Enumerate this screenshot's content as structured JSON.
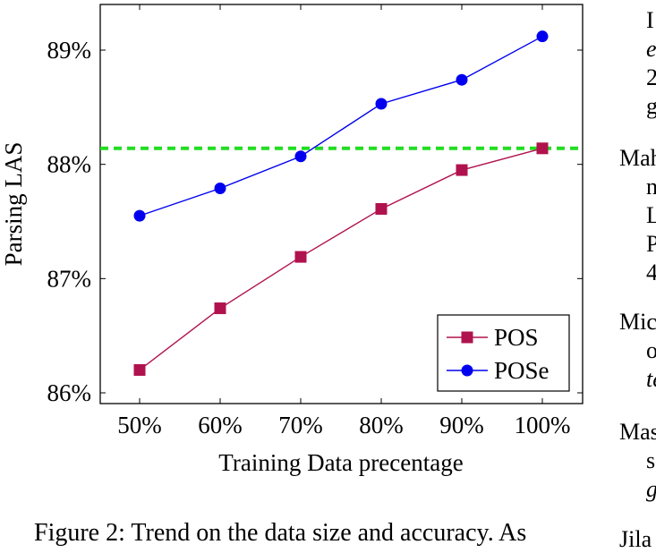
{
  "chart_data": {
    "type": "line",
    "categories": [
      "50%",
      "60%",
      "70%",
      "80%",
      "90%",
      "100%"
    ],
    "series": [
      {
        "name": "POS",
        "values": [
          86.2,
          86.74,
          87.19,
          87.61,
          87.95,
          88.14
        ],
        "color": "#b0124e",
        "marker": "square"
      },
      {
        "name": "POSe",
        "values": [
          87.55,
          87.79,
          88.07,
          88.53,
          88.74,
          89.12
        ],
        "color": "#0000ee",
        "marker": "circle"
      }
    ],
    "reference_line": {
      "value": 88.14,
      "color": "#22dd22",
      "style": "dashed"
    },
    "ylabel": "Parsing LAS",
    "xlabel": "Training Data precentage",
    "ylim": [
      85.9,
      89.4
    ],
    "yticks": [
      86,
      87,
      88,
      89
    ],
    "ytick_labels": [
      "86%",
      "87%",
      "88%",
      "89%"
    ],
    "grid": false,
    "legend_position": "bottom-right"
  },
  "caption": "Figure 2: Trend on the data size and accuracy. As",
  "right_column": [
    {
      "text": "I",
      "italic": false
    },
    {
      "text": "e",
      "italic": true
    },
    {
      "text": "2",
      "italic": false
    },
    {
      "text": "g",
      "italic": false
    },
    {
      "text": "Mah",
      "italic": false
    },
    {
      "text": "n",
      "italic": false
    },
    {
      "text": "L",
      "italic": false
    },
    {
      "text": "P",
      "italic": false
    },
    {
      "text": "4",
      "italic": false
    },
    {
      "text": "Mic",
      "italic": false
    },
    {
      "text": "o",
      "italic": false
    },
    {
      "text": "te",
      "italic": true
    },
    {
      "text": "Mas",
      "italic": false
    },
    {
      "text": "s",
      "italic": false
    },
    {
      "text": "g",
      "italic": true
    },
    {
      "text": "Jila",
      "italic": false
    }
  ]
}
